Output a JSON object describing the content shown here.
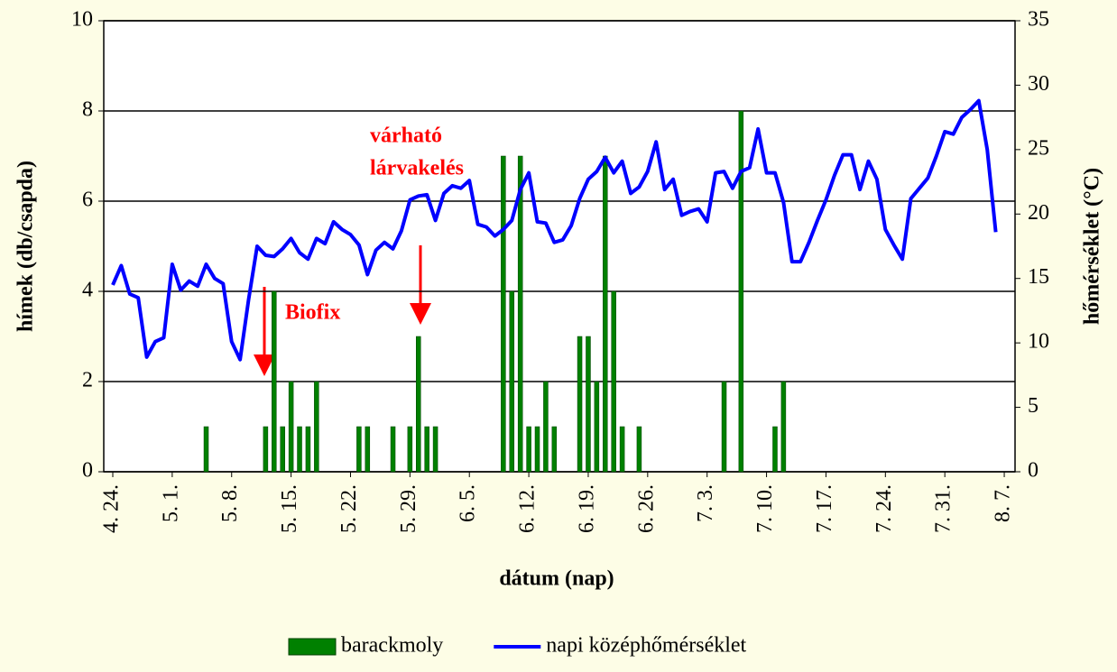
{
  "chart_data": {
    "type": "bar_line",
    "y_axis_label": "hímek (db/csapda)",
    "y2_axis_label": "hőmérséklet (°C)",
    "x_axis_label": "dátum (nap)",
    "annotations": [
      "Biofix",
      "várható",
      "lárvakelés"
    ],
    "categories": [
      "4. 24.",
      null,
      null,
      null,
      null,
      null,
      null,
      "5. 1.",
      null,
      null,
      null,
      null,
      null,
      null,
      "5. 8.",
      null,
      null,
      null,
      null,
      null,
      null,
      "5. 15.",
      null,
      null,
      null,
      null,
      null,
      null,
      "5. 22.",
      null,
      null,
      null,
      null,
      null,
      null,
      "5. 29.",
      null,
      null,
      null,
      null,
      null,
      null,
      "6. 5.",
      null,
      null,
      null,
      null,
      null,
      null,
      "6. 12.",
      null,
      null,
      null,
      null,
      null,
      null,
      "6. 19.",
      null,
      null,
      null,
      null,
      null,
      null,
      "6. 26.",
      null,
      null,
      null,
      null,
      null,
      null,
      "7. 3.",
      null,
      null,
      null,
      null,
      null,
      null,
      "7. 10.",
      null,
      null,
      null,
      null,
      null,
      null,
      "7. 17.",
      null,
      null,
      null,
      null,
      null,
      null,
      "7. 24.",
      null,
      null,
      null,
      null,
      null,
      null,
      "7. 31.",
      null,
      null,
      null,
      null,
      null,
      null,
      "8. 7."
    ],
    "series": [
      {
        "name": "barackmoly",
        "color": "#008000",
        "kind": "bar",
        "values": [
          0,
          0,
          0,
          0,
          0,
          0,
          0,
          0,
          0,
          0,
          0,
          1,
          0,
          0,
          0,
          0,
          0,
          0,
          1,
          4,
          1,
          2,
          1,
          1,
          2,
          0,
          0,
          0,
          0,
          1,
          1,
          0,
          0,
          1,
          0,
          1,
          3,
          1,
          1,
          0,
          0,
          0,
          0,
          0,
          0,
          0,
          7,
          4,
          7,
          1,
          1,
          2,
          1,
          0,
          0,
          3,
          3,
          2,
          7,
          4,
          1,
          0,
          1,
          0,
          0,
          0,
          0,
          0,
          0,
          0,
          0,
          0,
          2,
          0,
          8,
          0,
          0,
          0,
          1,
          2,
          0,
          0,
          0,
          0,
          0,
          0,
          0,
          0,
          0,
          0,
          0,
          0,
          0,
          0,
          0,
          0,
          0,
          0,
          0,
          0,
          0,
          0,
          0,
          0,
          0,
          0
        ]
      },
      {
        "name": "napi középhőmérséklet",
        "color": "#0000ff",
        "kind": "line",
        "axis": "y2",
        "values": [
          14.5,
          16.0,
          13.8,
          13.5,
          8.9,
          10.1,
          10.4,
          16.1,
          14.1,
          14.8,
          14.4,
          16.1,
          15.0,
          14.6,
          10.1,
          8.7,
          13.4,
          17.5,
          16.8,
          16.7,
          17.3,
          18.1,
          17.0,
          16.5,
          18.1,
          17.7,
          19.4,
          18.8,
          18.4,
          17.6,
          15.3,
          17.2,
          17.8,
          17.3,
          18.7,
          21.1,
          21.4,
          21.5,
          19.5,
          21.6,
          22.2,
          22.0,
          22.6,
          19.2,
          19.0,
          18.3,
          18.8,
          19.5,
          21.9,
          23.2,
          19.4,
          19.3,
          17.8,
          18.0,
          19.1,
          21.2,
          22.7,
          23.3,
          24.4,
          23.2,
          24.1,
          21.6,
          22.1,
          23.3,
          25.6,
          21.9,
          22.7,
          19.9,
          20.2,
          20.4,
          19.4,
          23.2,
          23.3,
          22.0,
          23.3,
          23.6,
          26.6,
          23.2,
          23.2,
          20.9,
          16.3,
          16.3,
          17.8,
          19.5,
          21.1,
          23.0,
          24.6,
          24.6,
          21.9,
          24.1,
          22.7,
          18.8,
          17.6,
          16.5,
          21.2,
          22.0,
          22.8,
          24.5,
          26.4,
          26.2,
          27.5,
          28.1,
          28.8,
          25.0,
          18.6,
          null
        ]
      }
    ],
    "ylim": [
      0,
      10
    ],
    "yticks": [
      0,
      2,
      4,
      6,
      8,
      10
    ],
    "y2lim": [
      0,
      35
    ],
    "y2ticks": [
      0,
      5,
      10,
      15,
      20,
      25,
      30,
      35
    ],
    "grid": true,
    "legend": "bottom"
  }
}
